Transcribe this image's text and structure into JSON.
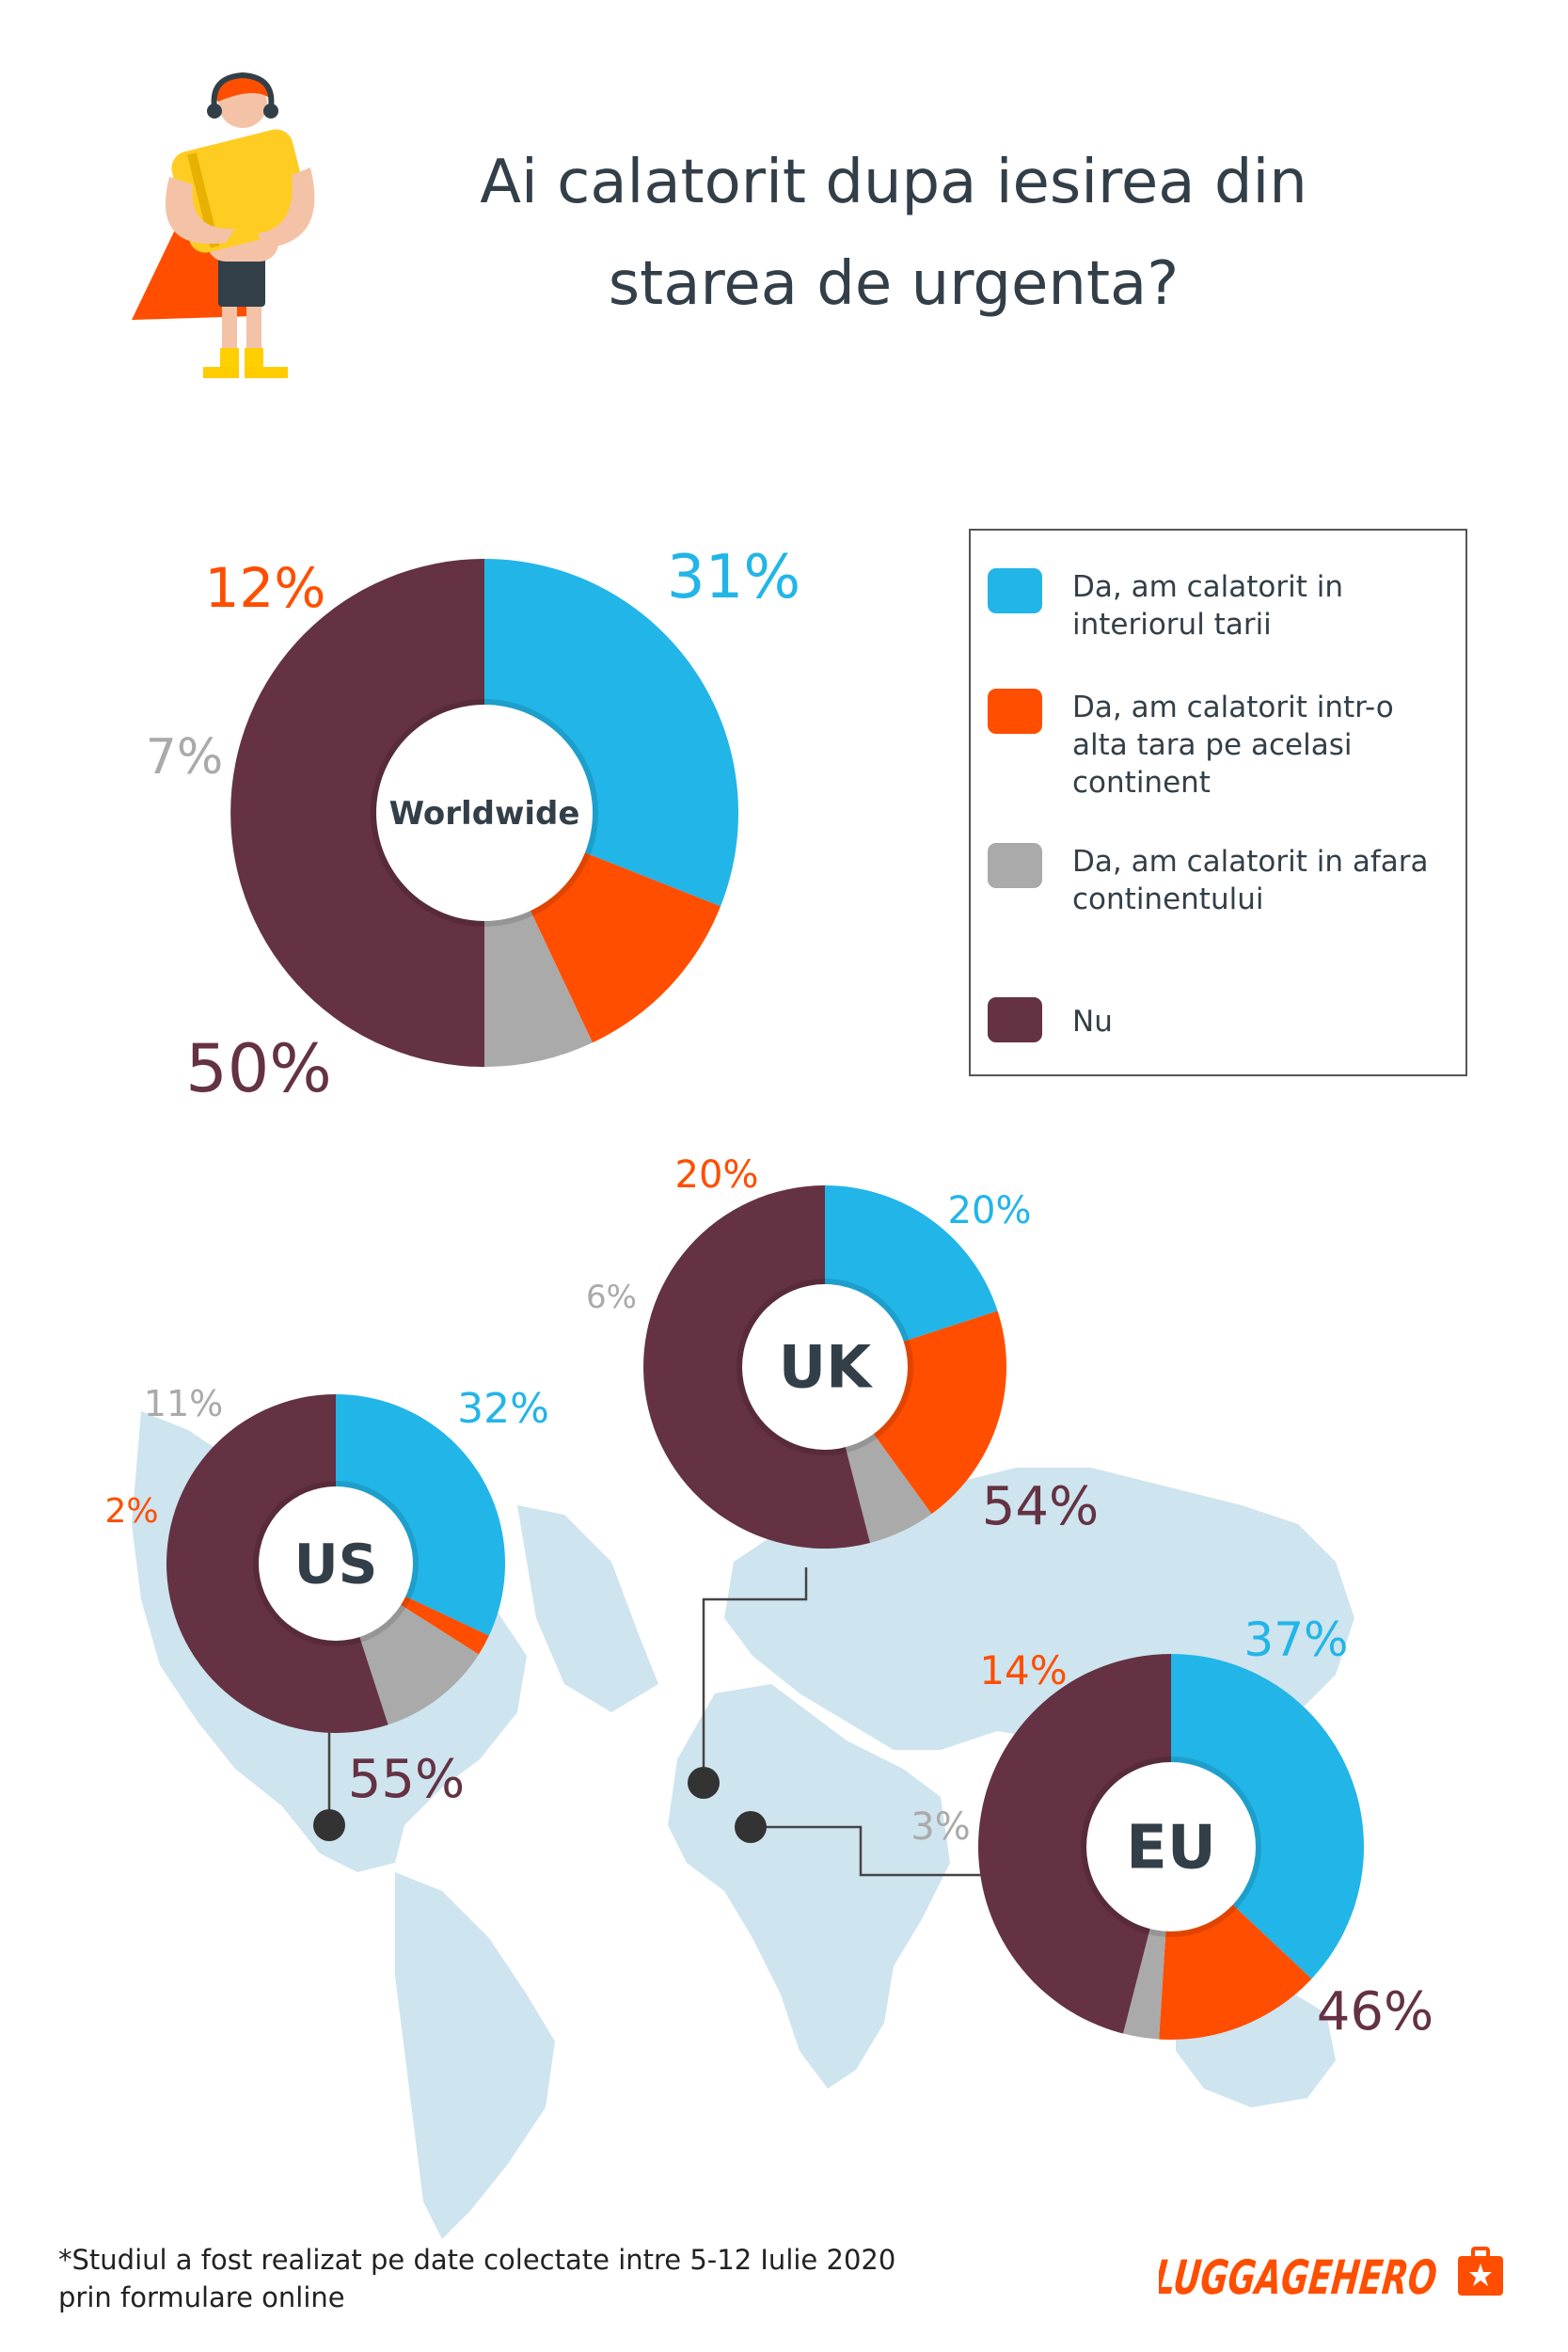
{
  "title": "Ai calatorit dupa iesirea din starea de urgenta?",
  "colors": {
    "interior": "#22b5e8",
    "continent": "#ff4e00",
    "outside": "#aaaaaa",
    "no": "#643243",
    "map": "#bedbea",
    "line": "#444444"
  },
  "legend": [
    {
      "label": "Da, am calatorit in interiorul tarii",
      "color": "#22b5e8"
    },
    {
      "label": "Da, am calatorit intr-o alta tara pe acelasi continent",
      "color": "#ff4e00"
    },
    {
      "label": "Da, am calatorit in afara continentului",
      "color": "#aaaaaa"
    },
    {
      "label": "Nu",
      "color": "#643243"
    }
  ],
  "chart_data": [
    {
      "type": "pie",
      "title": "Worldwide",
      "categories": [
        "Da, am calatorit in interiorul tarii",
        "Da, am calatorit intr-o alta tara pe acelasi continent",
        "Da, am calatorit in afara continentului",
        "Nu"
      ],
      "values": [
        31,
        12,
        7,
        50
      ],
      "labels": [
        "31%",
        "12%",
        "7%",
        "50%"
      ]
    },
    {
      "type": "pie",
      "title": "UK",
      "categories": [
        "Da, am calatorit in interiorul tarii",
        "Da, am calatorit intr-o alta tara pe acelasi continent",
        "Da, am calatorit in afara continentului",
        "Nu"
      ],
      "values": [
        20,
        20,
        6,
        54
      ],
      "labels": [
        "20%",
        "20%",
        "6%",
        "54%"
      ]
    },
    {
      "type": "pie",
      "title": "US",
      "categories": [
        "Da, am calatorit in interiorul tarii",
        "Da, am calatorit intr-o alta tara pe acelasi continent",
        "Da, am calatorit in afara continentului",
        "Nu"
      ],
      "values": [
        32,
        2,
        11,
        55
      ],
      "labels": [
        "32%",
        "2%",
        "11%",
        "55%"
      ]
    },
    {
      "type": "pie",
      "title": "EU",
      "categories": [
        "Da, am calatorit in interiorul tarii",
        "Da, am calatorit intr-o alta tara pe acelasi continent",
        "Da, am calatorit in afara continentului",
        "Nu"
      ],
      "values": [
        37,
        14,
        3,
        46
      ],
      "labels": [
        "37%",
        "14%",
        "3%",
        "46%"
      ]
    }
  ],
  "footnote": [
    "*Studiul a fost realizat pe date colectate intre 5-12 Iulie 2020",
    "prin formulare online"
  ],
  "logo": {
    "text": "LUGGAGEHERO"
  }
}
